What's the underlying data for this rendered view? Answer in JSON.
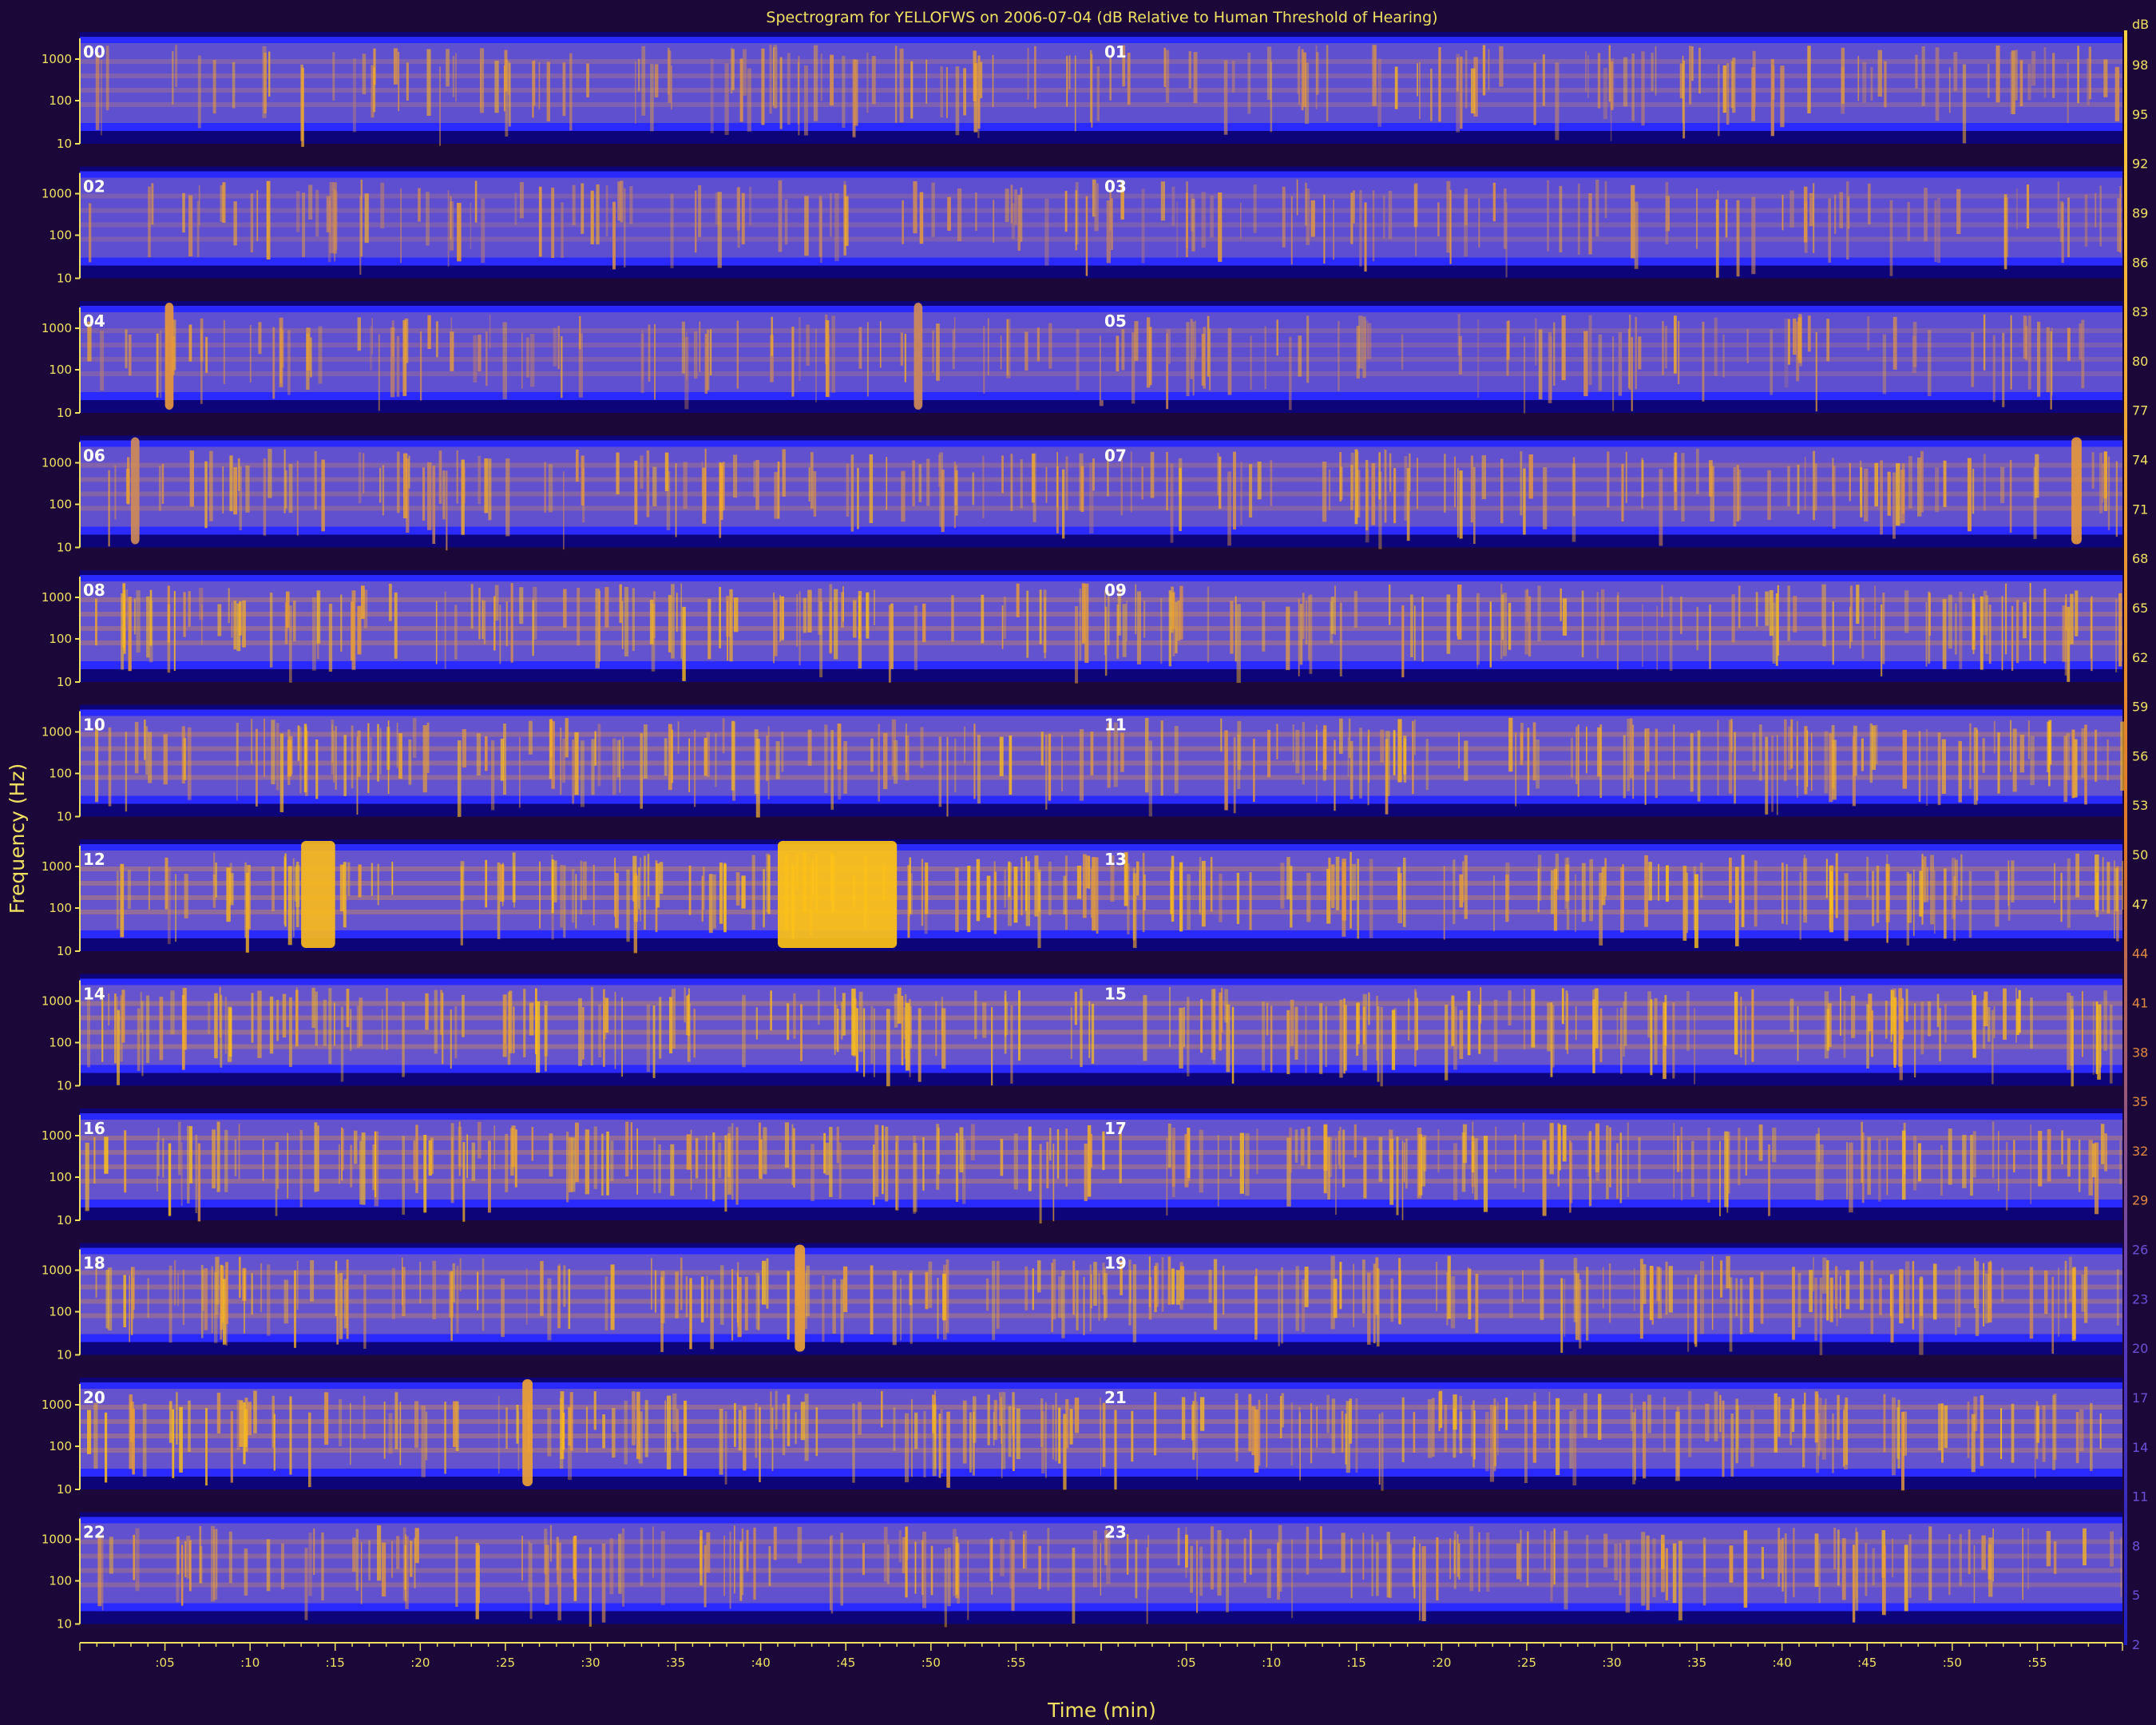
{
  "chart_data": {
    "type": "heatmap",
    "title": "Spectrogram for YELLOFWS on 2006-07-04 (dB Relative to Human Threshold of Hearing)",
    "xlabel": "Time (min)",
    "ylabel": "Frequency (Hz)",
    "hours": [
      "00",
      "01",
      "02",
      "03",
      "04",
      "05",
      "06",
      "07",
      "08",
      "09",
      "10",
      "11",
      "12",
      "13",
      "14",
      "15",
      "16",
      "17",
      "18",
      "19",
      "20",
      "21",
      "22",
      "23"
    ],
    "freq_tick_labels": [
      "1000",
      "100",
      "10"
    ],
    "time_tick_labels": [
      ":05",
      ":10",
      ":15",
      ":20",
      ":25",
      ":30",
      ":35",
      ":40",
      ":45",
      ":50",
      ":55"
    ],
    "colorbar": {
      "unit": "dB",
      "ticks": [
        98,
        95,
        92,
        89,
        86,
        83,
        80,
        77,
        74,
        71,
        68,
        65,
        62,
        59,
        56,
        53,
        50,
        47,
        44,
        41,
        38,
        35,
        32,
        29,
        26,
        23,
        20,
        17,
        14,
        11,
        8,
        5,
        2
      ],
      "colors": [
        "#0a0060",
        "#1f1fff",
        "#7a60c0",
        "#f0a030",
        "#ffc000"
      ]
    },
    "panel_intensity": [
      0.35,
      0.35,
      0.3,
      0.28,
      0.32,
      0.3,
      0.42,
      0.42,
      0.55,
      0.55,
      0.55,
      0.55,
      0.62,
      0.6,
      0.62,
      0.6,
      0.58,
      0.56,
      0.56,
      0.56,
      0.58,
      0.56,
      0.45,
      0.42
    ],
    "events": [
      {
        "hour": "12",
        "start_min": 13,
        "end_min": 15,
        "level": 0.95
      },
      {
        "hour": "12",
        "start_min": 41,
        "end_min": 48,
        "level": 1.0
      },
      {
        "hour": "04",
        "start_min": 5,
        "end_min": 5.5,
        "level": 0.75
      },
      {
        "hour": "04",
        "start_min": 49,
        "end_min": 49.5,
        "level": 0.7
      },
      {
        "hour": "06",
        "start_min": 3,
        "end_min": 3.5,
        "level": 0.7
      },
      {
        "hour": "07",
        "start_min": 57,
        "end_min": 57.6,
        "level": 0.75
      },
      {
        "hour": "20",
        "start_min": 26,
        "end_min": 26.6,
        "level": 0.8
      },
      {
        "hour": "18",
        "start_min": 42,
        "end_min": 42.6,
        "level": 0.8
      }
    ]
  }
}
